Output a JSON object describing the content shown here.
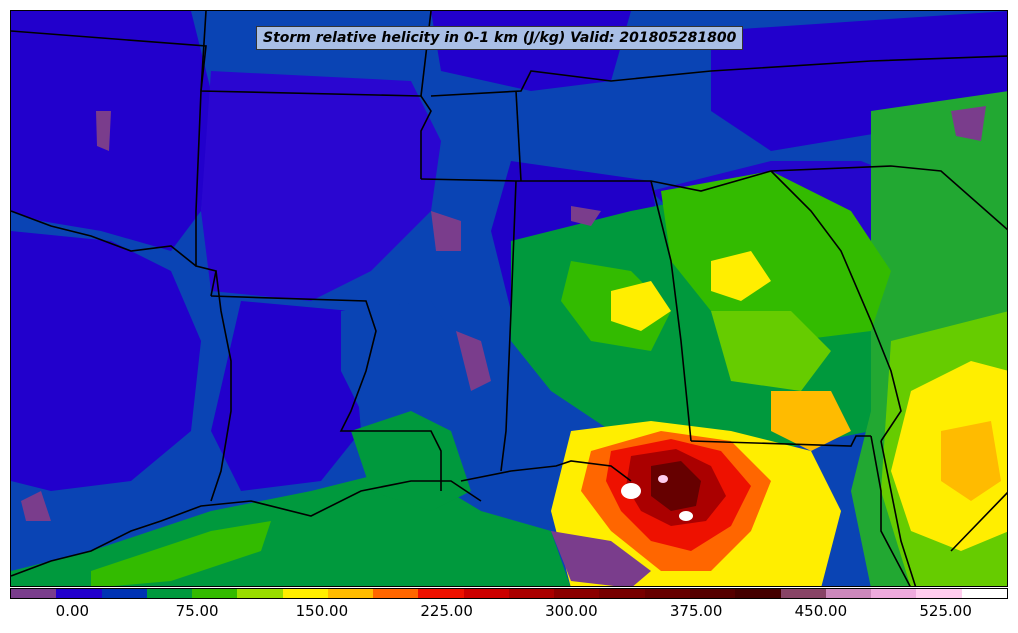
{
  "map": {
    "title": "Storm relative helicity in 0-1 km (J/kg) Valid: 201805281800",
    "colorbar": {
      "colors": [
        "#7a3d8c",
        "#2200cc",
        "#0033b3",
        "#00993d",
        "#33bb00",
        "#99dd00",
        "#ffee00",
        "#ffbb00",
        "#ff6600",
        "#ee1100",
        "#cc0000",
        "#aa0000",
        "#8b0000",
        "#770000",
        "#660000",
        "#550000",
        "#440000",
        "#884466",
        "#cc88bb",
        "#eeaadd",
        "#ffccee",
        "#ffffff"
      ],
      "tick_labels": [
        "0.00",
        "75.00",
        "150.00",
        "225.00",
        "300.00",
        "375.00",
        "450.00",
        "525.00"
      ],
      "tick_values": [
        0,
        75,
        150,
        225,
        300,
        375,
        450,
        525
      ],
      "range": [
        -37.5,
        562.5
      ]
    },
    "colors": {
      "background_field": "#0040b0",
      "low_field": "#2200cc",
      "border_lines": "#000000"
    }
  }
}
